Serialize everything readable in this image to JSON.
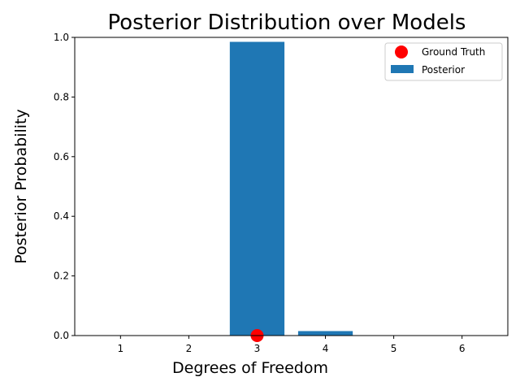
{
  "chart_data": {
    "type": "bar",
    "title": "Posterior Distribution over Models",
    "xlabel": "Degrees of Freedom",
    "ylabel": "Posterior Probability",
    "categories": [
      "1",
      "2",
      "3",
      "4",
      "5",
      "6"
    ],
    "xlim": [
      0.33,
      6.67
    ],
    "ylim": [
      0,
      1.0
    ],
    "y_ticks": [
      "0.0",
      "0.2",
      "0.4",
      "0.6",
      "0.8",
      "1.0"
    ],
    "series": [
      {
        "name": "Posterior",
        "type": "bar",
        "color": "#1f77b4",
        "values": [
          0.0,
          0.0,
          0.985,
          0.015,
          0.0,
          0.0
        ]
      },
      {
        "name": "Ground Truth",
        "type": "scatter",
        "color": "#ff0000",
        "points": [
          {
            "x": 3,
            "y": 0.0
          }
        ]
      }
    ],
    "grid": false,
    "legend_position": "top-right"
  }
}
